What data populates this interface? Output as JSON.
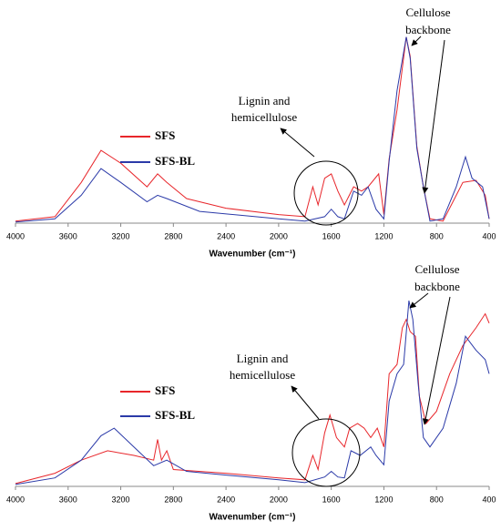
{
  "chart_data": [
    {
      "type": "line",
      "xlabel": "Wavenumber (cm⁻¹)",
      "xlim": [
        4000,
        400
      ],
      "ylim": [
        0,
        100
      ],
      "xticks": [
        4000,
        3600,
        3200,
        2800,
        2400,
        2000,
        1600,
        1200,
        800,
        400
      ],
      "annotations": [
        [
          "Lignin and",
          "hemicellulose"
        ],
        [
          "Cellulose",
          "backbone"
        ]
      ],
      "series": [
        {
          "name": "SFS",
          "color": "#e8262b",
          "x": [
            4000,
            3700,
            3500,
            3350,
            3200,
            3000,
            2920,
            2850,
            2700,
            2400,
            2000,
            1800,
            1740,
            1700,
            1650,
            1600,
            1550,
            1500,
            1430,
            1370,
            1320,
            1240,
            1200,
            1160,
            1100,
            1030,
            1000,
            950,
            900,
            850,
            750,
            650,
            600,
            500,
            430,
            400
          ],
          "values": [
            1,
            3,
            19,
            34,
            28,
            17,
            23,
            19,
            11.5,
            7,
            4,
            3,
            17,
            8.5,
            21,
            23,
            15,
            8.5,
            17,
            15,
            17,
            23,
            4,
            30,
            53,
            87,
            78,
            36,
            17,
            2,
            1,
            13,
            19,
            20,
            13,
            2
          ]
        },
        {
          "name": "SFS-BL",
          "color": "#2b3aa8",
          "x": [
            4000,
            3700,
            3500,
            3350,
            3200,
            3000,
            2920,
            2850,
            2600,
            2000,
            1800,
            1650,
            1600,
            1550,
            1500,
            1430,
            1370,
            1320,
            1260,
            1200,
            1160,
            1100,
            1030,
            1000,
            950,
            900,
            850,
            750,
            650,
            580,
            530,
            450,
            400
          ],
          "values": [
            0.5,
            2,
            13,
            25.5,
            19,
            10,
            13,
            11.5,
            5.5,
            2,
            1,
            3,
            6.5,
            3,
            2,
            15,
            13,
            17,
            6.5,
            2,
            29,
            62,
            87,
            77,
            35,
            17,
            1,
            2,
            17,
            31,
            21,
            17,
            2
          ]
        }
      ]
    },
    {
      "type": "line",
      "xlabel": "Wavenumber (cm⁻¹)",
      "xlim": [
        4000,
        400
      ],
      "ylim": [
        0,
        100
      ],
      "xticks": [
        4000,
        3600,
        3200,
        2800,
        2400,
        2000,
        1600,
        1200,
        800,
        400
      ],
      "annotations": [
        [
          "Lignin and",
          "hemicellulose"
        ],
        [
          "Cellulose",
          "backbone"
        ]
      ],
      "series": [
        {
          "name": "SFS",
          "color": "#e8262b",
          "x": [
            4000,
            3700,
            3500,
            3300,
            3100,
            2950,
            2920,
            2890,
            2850,
            2800,
            2400,
            2000,
            1800,
            1740,
            1700,
            1650,
            1610,
            1560,
            1500,
            1460,
            1400,
            1350,
            1300,
            1250,
            1200,
            1160,
            1100,
            1060,
            1030,
            1000,
            960,
            930,
            880,
            800,
            700,
            600,
            500,
            430,
            400
          ],
          "values": [
            1.5,
            7,
            14,
            19,
            16.5,
            14,
            25,
            14,
            19,
            9,
            7,
            4.5,
            3.5,
            16.5,
            9,
            28.5,
            38,
            26,
            21,
            31,
            33.5,
            31,
            26,
            31,
            21,
            60,
            65,
            84.5,
            89,
            82.5,
            80,
            48,
            33.5,
            40,
            60,
            75,
            84.5,
            92,
            87
          ]
        },
        {
          "name": "SFS-BL",
          "color": "#2b3aa8",
          "x": [
            4000,
            3700,
            3500,
            3350,
            3250,
            3100,
            2950,
            2850,
            2700,
            2400,
            2000,
            1800,
            1650,
            1600,
            1550,
            1500,
            1450,
            1380,
            1300,
            1260,
            1200,
            1160,
            1100,
            1050,
            1010,
            980,
            940,
            900,
            850,
            750,
            650,
            580,
            500,
            430,
            400
          ],
          "values": [
            1,
            4.5,
            14,
            27,
            31,
            21,
            11,
            14,
            8,
            6,
            3.5,
            2,
            5,
            8,
            5,
            4.5,
            19,
            16.5,
            21,
            16.5,
            11.5,
            45.5,
            60,
            65,
            99,
            89,
            55,
            26,
            21,
            31,
            55,
            80,
            72.5,
            67.5,
            60
          ]
        }
      ]
    }
  ]
}
